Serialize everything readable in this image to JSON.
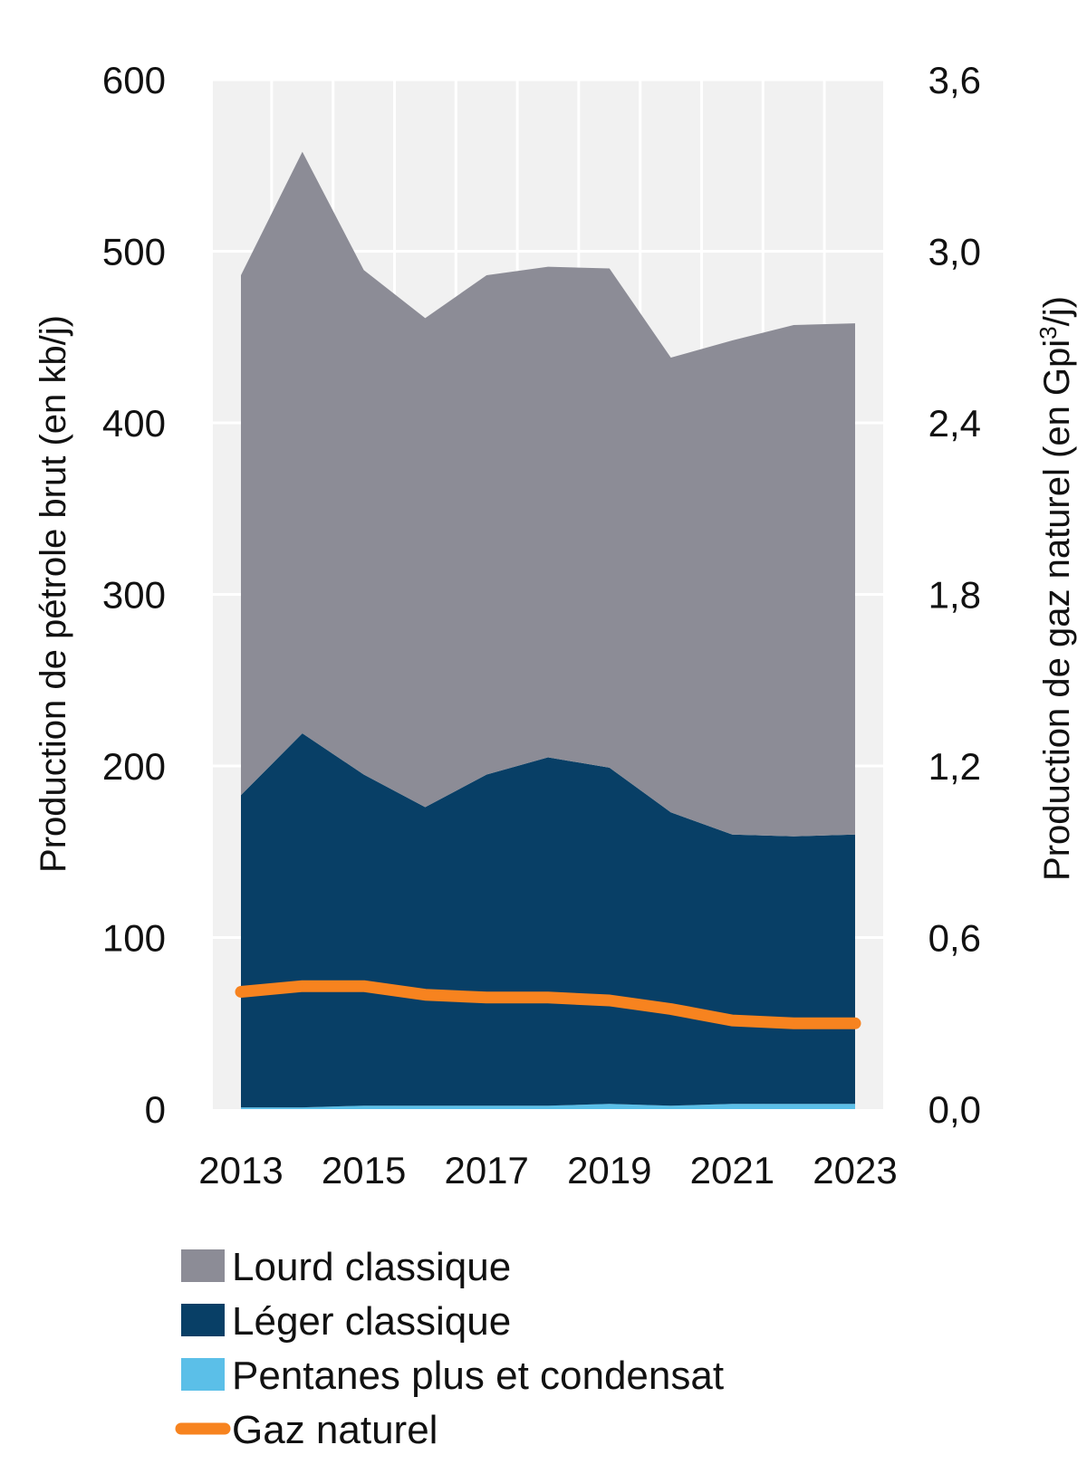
{
  "chart_data": {
    "type": "area",
    "x": [
      "2013",
      "2014",
      "2015",
      "2016",
      "2017",
      "2018",
      "2019",
      "2020",
      "2021",
      "2022",
      "2023"
    ],
    "x_tick_labels": [
      "2013",
      "2015",
      "2017",
      "2019",
      "2021",
      "2023"
    ],
    "series": [
      {
        "name": "Pentanes plus et condensat",
        "axis": "left",
        "kind": "area",
        "color": "#5bbfe8",
        "values": [
          1,
          1,
          2,
          2,
          2,
          2,
          3,
          2,
          3,
          3,
          3
        ]
      },
      {
        "name": "Léger classique",
        "axis": "left",
        "kind": "area",
        "color": "#083f66",
        "values": [
          182,
          218,
          193,
          174,
          193,
          203,
          196,
          171,
          157,
          156,
          157
        ]
      },
      {
        "name": "Lourd classique",
        "axis": "left",
        "kind": "area",
        "color": "#8c8c96",
        "values": [
          303,
          339,
          294,
          285,
          291,
          286,
          291,
          265,
          288,
          298,
          298
        ]
      },
      {
        "name": "Gaz naturel",
        "axis": "right",
        "kind": "line",
        "color": "#f7831f",
        "values": [
          0.41,
          0.43,
          0.43,
          0.4,
          0.39,
          0.39,
          0.38,
          0.35,
          0.31,
          0.3,
          0.3
        ]
      }
    ],
    "y_left": {
      "label": "Production de pétrole brut (en kb/j)",
      "min": 0,
      "max": 600,
      "ticks": [
        0,
        100,
        200,
        300,
        400,
        500,
        600
      ],
      "tick_labels": [
        "0",
        "100",
        "200",
        "300",
        "400",
        "500",
        "600"
      ]
    },
    "y_right": {
      "label_prefix": "Production de gaz naturel  (en Gpi",
      "label_sup": "3",
      "label_suffix": "/j)",
      "min": 0,
      "max": 3.6,
      "ticks": [
        0,
        0.6,
        1.2,
        1.8,
        2.4,
        3.0,
        3.6
      ],
      "tick_labels": [
        "0,0",
        "0,6",
        "1,2",
        "1,8",
        "2,4",
        "3,0",
        "3,6"
      ]
    },
    "grid": true,
    "plot_background": "#f1f1f1",
    "legend": {
      "position": "bottom",
      "entries": [
        {
          "label": "Lourd classique",
          "color": "#8c8c96",
          "kind": "area"
        },
        {
          "label": "Léger classique",
          "color": "#083f66",
          "kind": "area"
        },
        {
          "label": "Pentanes plus et condensat",
          "color": "#5bbfe8",
          "kind": "area"
        },
        {
          "label": "Gaz naturel",
          "color": "#f7831f",
          "kind": "line"
        }
      ]
    }
  }
}
